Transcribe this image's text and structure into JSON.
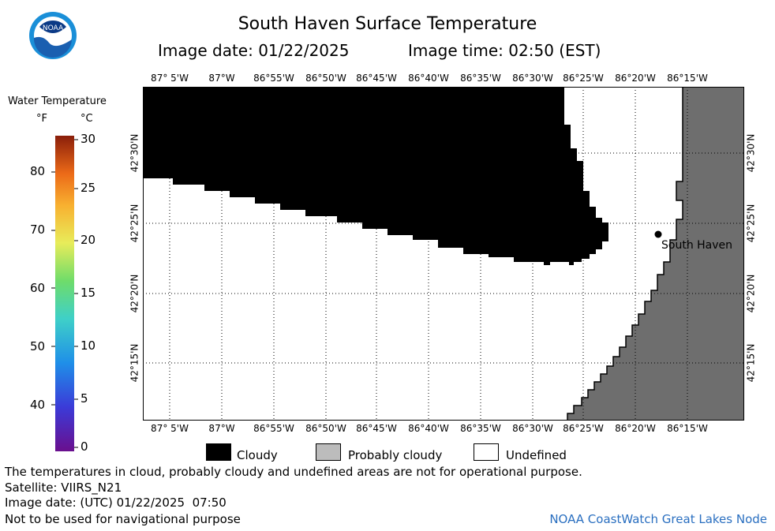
{
  "header": {
    "title": "South Haven Surface Temperature",
    "image_date": "Image date: 01/22/2025",
    "image_time": "Image time: 02:50 (EST)"
  },
  "logo": {
    "text": "NOAA"
  },
  "colorbar": {
    "title": "Water Temperature",
    "unit_f": "°F",
    "unit_c": "°C",
    "f_ticks": [
      "80",
      "70",
      "60",
      "50",
      "40"
    ],
    "c_ticks": [
      "30",
      "25",
      "20",
      "15",
      "10",
      "5",
      "0"
    ]
  },
  "map": {
    "lon_labels": [
      "87° 5'W",
      "87°W",
      "86°55'W",
      "86°50'W",
      "86°45'W",
      "86°40'W",
      "86°35'W",
      "86°30'W",
      "86°25'W",
      "86°20'W",
      "86°15'W"
    ],
    "lat_labels": [
      "42°30'N",
      "42°25'N",
      "42°20'N",
      "42°15'N"
    ],
    "city_label": "South Haven",
    "colors": {
      "cloud": "#000000",
      "land": "#6e6e6e",
      "water_undefined": "#ffffff"
    }
  },
  "legend": {
    "cloudy": "Cloudy",
    "probably_cloudy": "Probably cloudy",
    "undefined": "Undefined"
  },
  "footer": {
    "disclaimer": "The temperatures in cloud, probably cloudy and undefined areas are not for operational purpose.",
    "satellite": "Satellite: VIIRS_N21",
    "utc_date": "Image date: (UTC) 01/22/2025  07:50",
    "nav_warning": "Not to be used for navigational purpose",
    "credit": "NOAA CoastWatch Great Lakes Node"
  }
}
